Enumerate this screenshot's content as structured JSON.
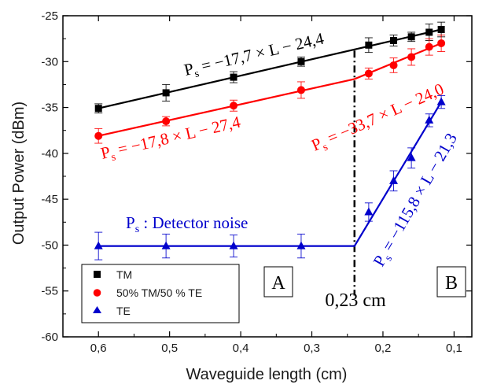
{
  "chart_data": {
    "type": "scatter",
    "xlabel": "Waveguide length (cm)",
    "ylabel": "Output Power (dBm)",
    "xlim": [
      0.65,
      0.075
    ],
    "ylim": [
      -60,
      -25
    ],
    "x_reversed": true,
    "x_ticks": [
      0.6,
      0.5,
      0.4,
      0.3,
      0.2,
      0.1
    ],
    "x_tick_labels": [
      "0,6",
      "0,5",
      "0,4",
      "0,3",
      "0,2",
      "0,1"
    ],
    "y_ticks": [
      -25,
      -30,
      -35,
      -40,
      -45,
      -50,
      -55,
      -60
    ],
    "y_tick_labels": [
      "-25",
      "-30",
      "-35",
      "-40",
      "-45",
      "-50",
      "-55",
      "-60"
    ],
    "legend_position": "bottom-left",
    "series": [
      {
        "name": "TM",
        "color": "#000000",
        "marker": "square",
        "x": [
          0.6,
          0.505,
          0.41,
          0.315,
          0.22,
          0.185,
          0.16,
          0.135,
          0.118
        ],
        "y": [
          -35.1,
          -33.4,
          -31.7,
          -30.0,
          -28.2,
          -27.7,
          -27.3,
          -26.8,
          -26.5
        ],
        "error": [
          0.5,
          0.9,
          0.6,
          0.5,
          0.8,
          0.6,
          0.5,
          0.9,
          0.8
        ],
        "fit": [
          [
            0.6,
            -35.1
          ],
          [
            0.118,
            -26.5
          ]
        ]
      },
      {
        "name": "50% TM/50 % TE",
        "color": "#ff0000",
        "marker": "circle",
        "x": [
          0.6,
          0.505,
          0.41,
          0.315,
          0.22,
          0.185,
          0.16,
          0.135,
          0.118
        ],
        "y": [
          -38.1,
          -36.5,
          -34.8,
          -33.1,
          -31.3,
          -30.4,
          -29.5,
          -28.4,
          -28.0
        ],
        "error": [
          0.8,
          0.5,
          0.6,
          0.9,
          0.6,
          0.8,
          0.9,
          0.9,
          0.9
        ],
        "fit": [
          [
            0.6,
            -38.1
          ],
          [
            0.24,
            -31.9
          ],
          [
            0.118,
            -28.0
          ]
        ]
      },
      {
        "name": "TE",
        "color": "#0000cc",
        "marker": "triangle",
        "x": [
          0.6,
          0.505,
          0.41,
          0.315,
          0.22,
          0.185,
          0.16,
          0.135,
          0.118
        ],
        "y": [
          -50.1,
          -50.1,
          -50.1,
          -50.1,
          -46.4,
          -43.0,
          -40.5,
          -36.4,
          -34.4
        ],
        "error": [
          1.5,
          1.3,
          1.2,
          1.3,
          1.0,
          1.1,
          1.1,
          0.7,
          0.7
        ],
        "fit": [
          [
            0.6,
            -50.1
          ],
          [
            0.24,
            -50.1
          ],
          [
            0.118,
            -34.4
          ]
        ]
      }
    ],
    "annotations": {
      "eq_tm": {
        "prefix": "P",
        "sub": "s",
        "text": " = −17,7 × L − 24,4",
        "color": "#000000"
      },
      "eq_mix_long": {
        "prefix": "P",
        "sub": "s",
        "text": " = −17,8 × L − 27,4",
        "color": "#ff0000"
      },
      "eq_mix_short": {
        "prefix": "P",
        "sub": "s",
        "text": " = −33,7 × L − 24,0",
        "color": "#ff0000"
      },
      "eq_te_noise": {
        "prefix": "P",
        "sub": "s",
        "text": " : Detector noise",
        "color": "#0000cc"
      },
      "eq_te_short": {
        "prefix": "P",
        "sub": "s",
        "text": " = −115,8 × L − 21,3",
        "color": "#0000cc"
      },
      "threshold_label": "0,23 cm",
      "threshold_x": 0.24,
      "region_a": "A",
      "region_b": "B"
    }
  }
}
